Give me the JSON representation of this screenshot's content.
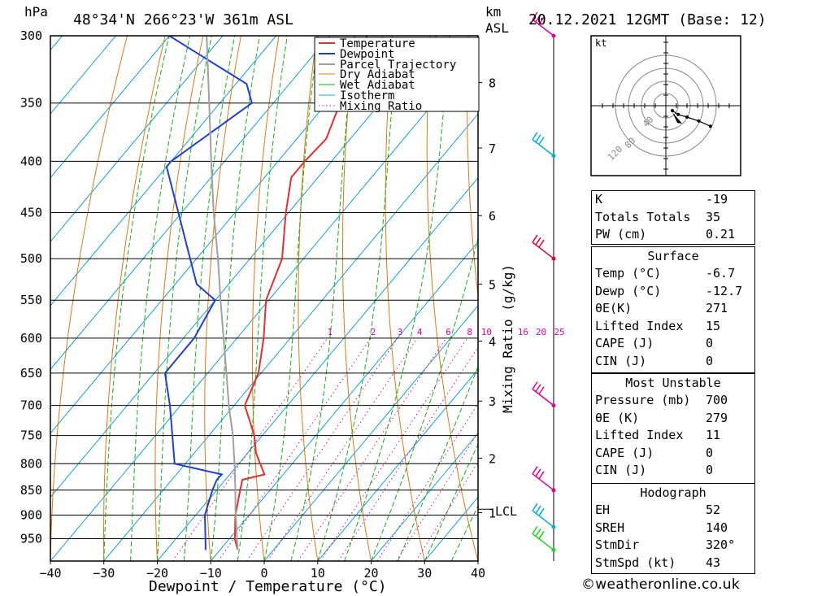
{
  "header": {
    "pressure_unit": "hPa",
    "location": "48°34'N  266°23'W  361m  ASL",
    "km_label": "km",
    "asl_label": "ASL",
    "datetime": "20.12.2021  12GMT  (Base: 12)"
  },
  "colors": {
    "temperature": "#e03030",
    "dewpoint": "#1f3fd0",
    "parcel": "#a0a0a0",
    "dry_adiabat": "#e07810",
    "wet_adiabat": "#10b010",
    "isotherm": "#10a0e0",
    "mixing_ratio": "#e000a0",
    "wind_red": "#e00030",
    "wind_magenta": "#e00090",
    "wind_cyan": "#00b0d0",
    "wind_green": "#20d020"
  },
  "legend": [
    "Temperature",
    "Dewpoint",
    "Parcel Trajectory",
    "Dry Adiabat",
    "Wet Adiabat",
    "Isotherm",
    "Mixing Ratio"
  ],
  "x_axis_label": "Dewpoint / Temperature (°C)",
  "mixing_ratio_axis_label": "Mixing Ratio (g/kg)",
  "lcl_label": "LCL",
  "hodograph": {
    "unit": "kt",
    "ring_labels": [
      "40",
      "80",
      "120"
    ],
    "points": [
      [
        0,
        0
      ],
      [
        4,
        -3
      ],
      [
        10,
        -5
      ],
      [
        18,
        -8
      ],
      [
        26,
        -12
      ]
    ]
  },
  "panel": {
    "indices": [
      {
        "label": "K",
        "value": "-19"
      },
      {
        "label": "Totals Totals",
        "value": "35"
      },
      {
        "label": "PW (cm)",
        "value": "0.21"
      }
    ],
    "surface_title": "Surface",
    "surface": [
      {
        "label": "Temp (°C)",
        "value": "-6.7"
      },
      {
        "label": "Dewp (°C)",
        "value": "-12.7"
      },
      {
        "label": "θE(K)",
        "value": "271"
      },
      {
        "label": "Lifted Index",
        "value": "15"
      },
      {
        "label": "CAPE (J)",
        "value": "0"
      },
      {
        "label": "CIN (J)",
        "value": "0"
      }
    ],
    "mu_title": "Most Unstable",
    "most_unstable": [
      {
        "label": "Pressure (mb)",
        "value": "700"
      },
      {
        "label": "θE (K)",
        "value": "279"
      },
      {
        "label": "Lifted Index",
        "value": "11"
      },
      {
        "label": "CAPE (J)",
        "value": "0"
      },
      {
        "label": "CIN (J)",
        "value": "0"
      }
    ],
    "hodo_title": "Hodograph",
    "hodograph": [
      {
        "label": "EH",
        "value": "52"
      },
      {
        "label": "SREH",
        "value": "140"
      },
      {
        "label": "StmDir",
        "value": "320°"
      },
      {
        "label": "StmSpd (kt)",
        "value": "43"
      }
    ]
  },
  "copyright": "©weatheronline.co.uk",
  "chart_data": {
    "type": "line",
    "title": "48°34'N  266°23'W  361m  ASL",
    "xlabel": "Dewpoint / Temperature (°C)",
    "ylabel": "hPa",
    "xlim": [
      -40,
      40
    ],
    "ylim": [
      300,
      1000
    ],
    "x_ticks": [
      -40,
      -30,
      -20,
      -10,
      0,
      10,
      20,
      30,
      40
    ],
    "pressure_levels": [
      300,
      350,
      400,
      450,
      500,
      550,
      600,
      650,
      700,
      750,
      800,
      850,
      900,
      950
    ],
    "km_ticks": [
      {
        "label": "8",
        "p": 334
      },
      {
        "label": "7",
        "p": 388
      },
      {
        "label": "6",
        "p": 453
      },
      {
        "label": "5",
        "p": 530
      },
      {
        "label": "4",
        "p": 604
      },
      {
        "label": "3",
        "p": 693
      },
      {
        "label": "2",
        "p": 790
      },
      {
        "label": "1",
        "p": 895
      }
    ],
    "lcl_pressure": 888,
    "mixing_ratio_labels": [
      "1",
      "2",
      "3",
      "4",
      "6",
      "8",
      "10",
      "16",
      "20",
      "25"
    ],
    "mixing_ratio_values": [
      1,
      2,
      3,
      4,
      6,
      8,
      10,
      16,
      20,
      25
    ],
    "series": [
      {
        "name": "Temperature",
        "points": [
          {
            "p": 975,
            "t": -6.7
          },
          {
            "p": 950,
            "t": -9.0
          },
          {
            "p": 900,
            "t": -12.6
          },
          {
            "p": 850,
            "t": -15.6
          },
          {
            "p": 830,
            "t": -16.8
          },
          {
            "p": 820,
            "t": -13.5
          },
          {
            "p": 800,
            "t": -16.0
          },
          {
            "p": 780,
            "t": -18.5
          },
          {
            "p": 750,
            "t": -21.5
          },
          {
            "p": 700,
            "t": -28.0
          },
          {
            "p": 650,
            "t": -30.5
          },
          {
            "p": 600,
            "t": -35.0
          },
          {
            "p": 550,
            "t": -40.5
          },
          {
            "p": 500,
            "t": -44.0
          },
          {
            "p": 450,
            "t": -50.5
          },
          {
            "p": 415,
            "t": -55.0
          },
          {
            "p": 400,
            "t": -55.0
          },
          {
            "p": 380,
            "t": -54.5
          },
          {
            "p": 350,
            "t": -57.5
          },
          {
            "p": 330,
            "t": -61.0
          },
          {
            "p": 300,
            "t": -63.0
          }
        ]
      },
      {
        "name": "Dewpoint",
        "points": [
          {
            "p": 975,
            "t": -12.7
          },
          {
            "p": 950,
            "t": -14.5
          },
          {
            "p": 900,
            "t": -18.3
          },
          {
            "p": 850,
            "t": -20.8
          },
          {
            "p": 830,
            "t": -21.6
          },
          {
            "p": 820,
            "t": -21.5
          },
          {
            "p": 800,
            "t": -32.0
          },
          {
            "p": 700,
            "t": -42.0
          },
          {
            "p": 650,
            "t": -48.0
          },
          {
            "p": 600,
            "t": -48.0
          },
          {
            "p": 550,
            "t": -50.0
          },
          {
            "p": 530,
            "t": -56.0
          },
          {
            "p": 405,
            "t": -80.0
          },
          {
            "p": 400,
            "t": -80.0
          },
          {
            "p": 350,
            "t": -74.0
          },
          {
            "p": 335,
            "t": -78.0
          },
          {
            "p": 300,
            "t": -100.0
          }
        ]
      },
      {
        "name": "Parcel Trajectory",
        "points": [
          {
            "p": 975,
            "t": -6.7
          },
          {
            "p": 888,
            "t": -13.5
          },
          {
            "p": 850,
            "t": -16.5
          },
          {
            "p": 800,
            "t": -20.8
          },
          {
            "p": 750,
            "t": -25.5
          },
          {
            "p": 700,
            "t": -31.0
          },
          {
            "p": 650,
            "t": -36.5
          },
          {
            "p": 600,
            "t": -42.5
          },
          {
            "p": 550,
            "t": -49.0
          },
          {
            "p": 500,
            "t": -56.0
          },
          {
            "p": 450,
            "t": -64.0
          },
          {
            "p": 400,
            "t": -72.5
          },
          {
            "p": 350,
            "t": -82.0
          },
          {
            "p": 300,
            "t": -93.0
          }
        ]
      }
    ],
    "wind_barbs": [
      {
        "p": 300,
        "color": "magenta"
      },
      {
        "p": 395,
        "color": "cyan"
      },
      {
        "p": 500,
        "color": "red"
      },
      {
        "p": 700,
        "color": "magenta"
      },
      {
        "p": 850,
        "color": "magenta"
      },
      {
        "p": 925,
        "color": "cyan"
      },
      {
        "p": 975,
        "color": "green"
      }
    ]
  }
}
